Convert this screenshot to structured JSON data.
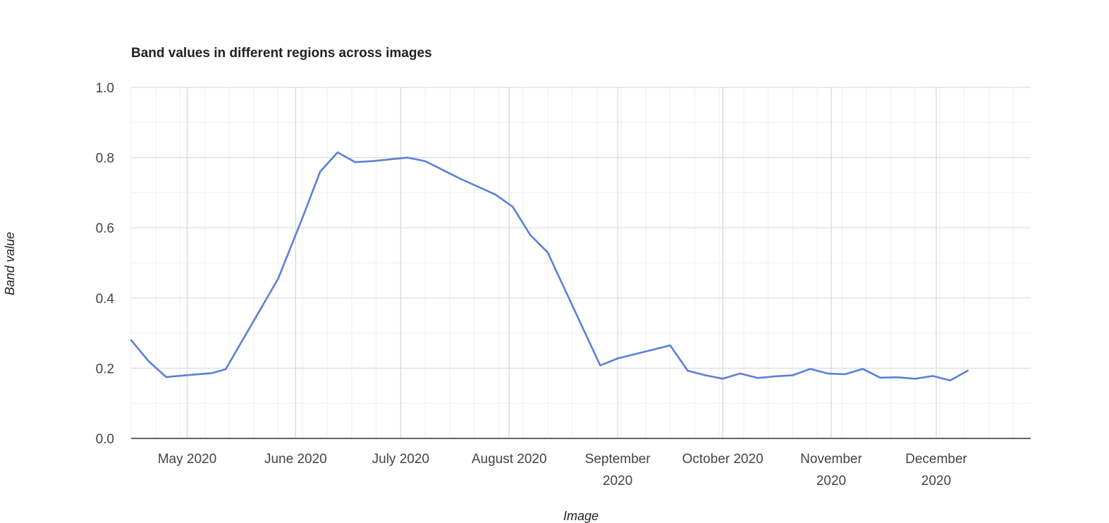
{
  "chart_data": {
    "type": "line",
    "title": "Band values in different regions across images",
    "xlabel": "Image",
    "ylabel": "Band value",
    "ylim": [
      0,
      1.0
    ],
    "xlim": [
      "2020-04-15",
      "2020-12-28"
    ],
    "y_ticks": [
      "0.0",
      "0.2",
      "0.4",
      "0.6",
      "0.8",
      "1.0"
    ],
    "x_ticks": [
      {
        "date": "2020-05-01",
        "lines": [
          "May 2020"
        ]
      },
      {
        "date": "2020-06-01",
        "lines": [
          "June 2020"
        ]
      },
      {
        "date": "2020-07-01",
        "lines": [
          "July 2020"
        ]
      },
      {
        "date": "2020-08-01",
        "lines": [
          "August 2020"
        ]
      },
      {
        "date": "2020-09-01",
        "lines": [
          "September",
          "2020"
        ]
      },
      {
        "date": "2020-10-01",
        "lines": [
          "October 2020"
        ]
      },
      {
        "date": "2020-11-01",
        "lines": [
          "November",
          "2020"
        ]
      },
      {
        "date": "2020-12-01",
        "lines": [
          "December",
          "2020"
        ]
      }
    ],
    "grid": true,
    "legend": "none",
    "series_color": "#5b7fdb",
    "series": [
      {
        "points": [
          {
            "x": "2020-04-15",
            "y": 0.28
          },
          {
            "x": "2020-04-20",
            "y": 0.22
          },
          {
            "x": "2020-04-25",
            "y": 0.175
          },
          {
            "x": "2020-05-03",
            "y": 0.182
          },
          {
            "x": "2020-05-08",
            "y": 0.186
          },
          {
            "x": "2020-05-12",
            "y": 0.197
          },
          {
            "x": "2020-05-27",
            "y": 0.455
          },
          {
            "x": "2020-06-03",
            "y": 0.63
          },
          {
            "x": "2020-06-08",
            "y": 0.76
          },
          {
            "x": "2020-06-13",
            "y": 0.815
          },
          {
            "x": "2020-06-18",
            "y": 0.787
          },
          {
            "x": "2020-06-23",
            "y": 0.79
          },
          {
            "x": "2020-07-03",
            "y": 0.8
          },
          {
            "x": "2020-07-08",
            "y": 0.79
          },
          {
            "x": "2020-07-18",
            "y": 0.74
          },
          {
            "x": "2020-07-28",
            "y": 0.695
          },
          {
            "x": "2020-08-02",
            "y": 0.66
          },
          {
            "x": "2020-08-07",
            "y": 0.58
          },
          {
            "x": "2020-08-12",
            "y": 0.53
          },
          {
            "x": "2020-08-27",
            "y": 0.208
          },
          {
            "x": "2020-09-01",
            "y": 0.228
          },
          {
            "x": "2020-09-16",
            "y": 0.265
          },
          {
            "x": "2020-09-21",
            "y": 0.193
          },
          {
            "x": "2020-09-26",
            "y": 0.18
          },
          {
            "x": "2020-10-01",
            "y": 0.17
          },
          {
            "x": "2020-10-06",
            "y": 0.185
          },
          {
            "x": "2020-10-11",
            "y": 0.172
          },
          {
            "x": "2020-10-16",
            "y": 0.177
          },
          {
            "x": "2020-10-21",
            "y": 0.18
          },
          {
            "x": "2020-10-26",
            "y": 0.198
          },
          {
            "x": "2020-10-31",
            "y": 0.185
          },
          {
            "x": "2020-11-05",
            "y": 0.183
          },
          {
            "x": "2020-11-10",
            "y": 0.198
          },
          {
            "x": "2020-11-15",
            "y": 0.173
          },
          {
            "x": "2020-11-20",
            "y": 0.174
          },
          {
            "x": "2020-11-25",
            "y": 0.17
          },
          {
            "x": "2020-11-30",
            "y": 0.178
          },
          {
            "x": "2020-12-05",
            "y": 0.165
          },
          {
            "x": "2020-12-10",
            "y": 0.193
          }
        ]
      }
    ]
  }
}
